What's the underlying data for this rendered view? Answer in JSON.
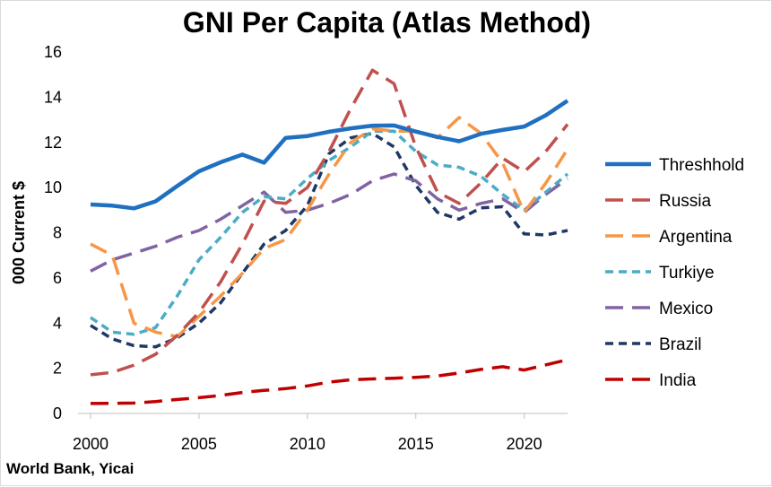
{
  "colors": {
    "Threshhold": "#1f70c1",
    "Russia": "#c0504d",
    "Argentina": "#f79646",
    "Turkiye": "#4bacc6",
    "Mexico": "#8064a2",
    "Brazil": "#1f3864",
    "India": "#c00000"
  },
  "chart_data": {
    "type": "line",
    "title": "GNI Per Capita (Atlas Method)",
    "xlabel": "",
    "ylabel": "000 Current $",
    "source": "World Bank, Yicai",
    "xlim": [
      2000,
      2022
    ],
    "ylim": [
      0,
      16
    ],
    "x_ticks": [
      "2000",
      "2005",
      "2010",
      "2015",
      "2020"
    ],
    "y_ticks": [
      "0",
      "2",
      "4",
      "6",
      "8",
      "10",
      "12",
      "14",
      "16"
    ],
    "grid": false,
    "legend_position": "right",
    "x": [
      2000,
      2001,
      2002,
      2003,
      2004,
      2005,
      2006,
      2007,
      2008,
      2009,
      2010,
      2011,
      2012,
      2013,
      2014,
      2015,
      2016,
      2017,
      2018,
      2019,
      2020,
      2021,
      2022
    ],
    "series": [
      {
        "name": "Threshhold",
        "style": "solid",
        "values": [
          9.25,
          9.2,
          9.08,
          9.39,
          10.07,
          10.72,
          11.12,
          11.46,
          11.1,
          12.2,
          12.28,
          12.47,
          12.62,
          12.74,
          12.75,
          12.48,
          12.24,
          12.05,
          12.38,
          12.55,
          12.7,
          13.2,
          13.85
        ]
      },
      {
        "name": "Russia",
        "style": "dashed",
        "values": [
          1.71,
          1.82,
          2.14,
          2.62,
          3.46,
          4.47,
          5.83,
          7.5,
          9.4,
          9.3,
          10.0,
          11.6,
          13.5,
          15.2,
          14.6,
          11.8,
          9.8,
          9.3,
          10.2,
          11.3,
          10.7,
          11.6,
          12.8
        ]
      },
      {
        "name": "Argentina",
        "style": "dashed",
        "values": [
          7.5,
          7.0,
          4.0,
          3.6,
          3.4,
          4.3,
          5.2,
          6.2,
          7.3,
          7.7,
          9.0,
          10.6,
          12.0,
          12.6,
          12.5,
          12.5,
          12.2,
          13.1,
          12.4,
          11.1,
          8.9,
          10.2,
          11.7
        ]
      },
      {
        "name": "Turkiye",
        "style": "dashed",
        "values": [
          4.25,
          3.6,
          3.5,
          3.8,
          5.2,
          6.8,
          7.8,
          8.9,
          9.6,
          9.5,
          10.4,
          11.2,
          11.8,
          12.5,
          12.5,
          11.6,
          11.0,
          10.9,
          10.5,
          9.7,
          9.0,
          9.8,
          10.6
        ]
      },
      {
        "name": "Mexico",
        "style": "dashed",
        "values": [
          6.3,
          6.8,
          7.1,
          7.4,
          7.8,
          8.1,
          8.6,
          9.2,
          9.8,
          8.9,
          9.0,
          9.3,
          9.7,
          10.3,
          10.6,
          10.3,
          9.5,
          9.0,
          9.3,
          9.5,
          8.9,
          9.7,
          10.4
        ]
      },
      {
        "name": "Brazil",
        "style": "dashed",
        "values": [
          3.9,
          3.3,
          3.0,
          2.95,
          3.35,
          4.0,
          4.9,
          6.2,
          7.5,
          8.1,
          9.2,
          11.5,
          12.2,
          12.4,
          11.8,
          10.1,
          8.9,
          8.6,
          9.1,
          9.15,
          7.95,
          7.9,
          8.1
        ]
      },
      {
        "name": "India",
        "style": "dashed",
        "values": [
          0.44,
          0.45,
          0.46,
          0.53,
          0.62,
          0.7,
          0.8,
          0.93,
          1.02,
          1.1,
          1.22,
          1.39,
          1.49,
          1.53,
          1.56,
          1.6,
          1.66,
          1.79,
          1.95,
          2.07,
          1.92,
          2.15,
          2.38
        ]
      }
    ]
  }
}
